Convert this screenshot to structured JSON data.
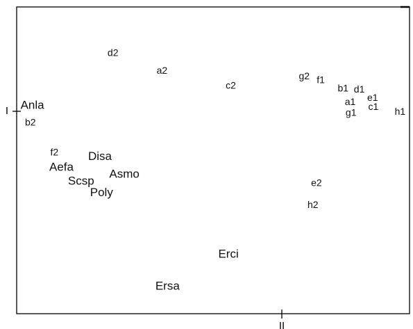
{
  "chart_data": {
    "type": "scatter",
    "title": "",
    "xlabel": "",
    "ylabel": "",
    "axis_ticks": {
      "x": [
        "II"
      ],
      "y": [
        "I"
      ]
    },
    "grid": false,
    "legend": "none",
    "xlim": [
      0,
      100
    ],
    "ylim": [
      0,
      100
    ],
    "series": [
      {
        "kind": "site",
        "points": [
          {
            "label": "d2",
            "x": 24.5,
            "y": 84.9
          },
          {
            "label": "a2",
            "x": 37.0,
            "y": 79.1
          },
          {
            "label": "c2",
            "x": 54.5,
            "y": 74.2
          },
          {
            "label": "g2",
            "x": 73.2,
            "y": 77.3
          },
          {
            "label": "f1",
            "x": 77.4,
            "y": 76.0
          },
          {
            "label": "b1",
            "x": 83.1,
            "y": 73.3
          },
          {
            "label": "d1",
            "x": 87.2,
            "y": 72.9
          },
          {
            "label": "a1",
            "x": 84.9,
            "y": 68.9
          },
          {
            "label": "e1",
            "x": 90.6,
            "y": 70.2
          },
          {
            "label": "c1",
            "x": 90.8,
            "y": 67.3
          },
          {
            "label": "g1",
            "x": 85.1,
            "y": 65.3
          },
          {
            "label": "h1",
            "x": 97.6,
            "y": 65.7
          },
          {
            "label": "b2",
            "x": 3.5,
            "y": 62.2
          },
          {
            "label": "f2",
            "x": 9.6,
            "y": 52.4
          },
          {
            "label": "e2",
            "x": 76.3,
            "y": 42.4
          },
          {
            "label": "h2",
            "x": 75.4,
            "y": 35.3
          }
        ]
      },
      {
        "kind": "species",
        "points": [
          {
            "label": "Anla",
            "x": 4.0,
            "y": 67.8
          },
          {
            "label": "Disa",
            "x": 21.2,
            "y": 51.1
          },
          {
            "label": "Aefa",
            "x": 11.4,
            "y": 47.6
          },
          {
            "label": "Asmo",
            "x": 27.4,
            "y": 45.3
          },
          {
            "label": "Scsp",
            "x": 16.4,
            "y": 43.1
          },
          {
            "label": "Poly",
            "x": 21.6,
            "y": 39.3
          },
          {
            "label": "Erci",
            "x": 53.9,
            "y": 19.3
          },
          {
            "label": "Ersa",
            "x": 38.4,
            "y": 8.9
          }
        ]
      }
    ]
  }
}
